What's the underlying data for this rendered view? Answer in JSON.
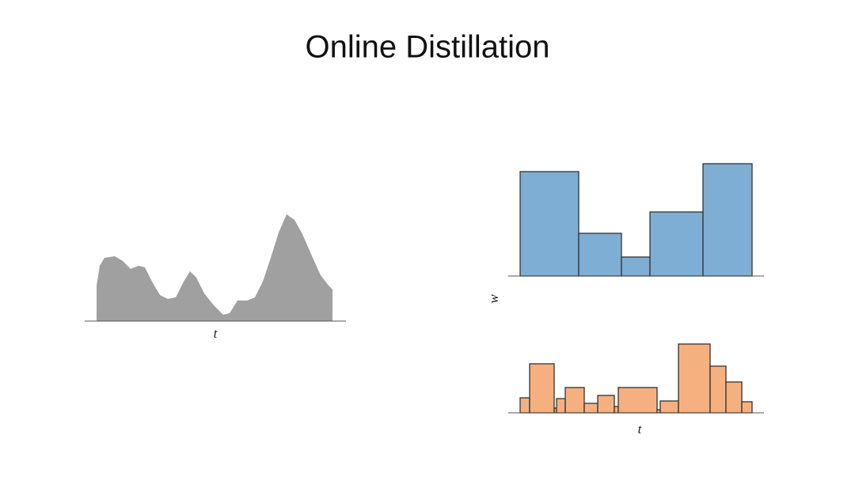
{
  "title": "Online Distillation",
  "chart_data": [
    {
      "type": "area",
      "x_label": "t",
      "color": "#a0a0a0",
      "x": [
        15,
        19,
        25,
        38,
        48,
        58,
        68,
        76,
        85,
        95,
        105,
        115,
        125,
        133,
        141,
        151,
        163,
        175,
        183,
        193,
        205,
        215,
        225,
        235,
        245,
        255,
        265,
        275,
        288,
        298,
        308,
        313
      ],
      "values": [
        45,
        70,
        80,
        82,
        76,
        66,
        70,
        68,
        50,
        33,
        28,
        30,
        50,
        63,
        55,
        35,
        20,
        8,
        10,
        26,
        26,
        30,
        50,
        80,
        112,
        135,
        128,
        110,
        80,
        58,
        45,
        40
      ],
      "xlim": [
        0,
        330
      ],
      "ylim": [
        0,
        140
      ]
    },
    {
      "type": "histogram",
      "y_label": "w",
      "color": "#7eaed4",
      "bins": [
        15,
        89,
        143,
        179,
        246,
        308
      ],
      "values": [
        132,
        54,
        24,
        81,
        142
      ],
      "xlim": [
        0,
        323
      ],
      "ylim": [
        0,
        150
      ]
    },
    {
      "type": "histogram",
      "x_label": "t",
      "color": "#f6b07f",
      "bins": [
        15,
        27,
        58,
        61,
        72,
        96,
        113,
        134,
        139,
        188,
        192,
        215,
        255,
        275,
        295,
        308
      ],
      "values": [
        19,
        62,
        6,
        18,
        32,
        12,
        22,
        8,
        32,
        4,
        15,
        87,
        59,
        39,
        14
      ],
      "xlim": [
        0,
        323
      ],
      "ylim": [
        0,
        100
      ]
    }
  ]
}
